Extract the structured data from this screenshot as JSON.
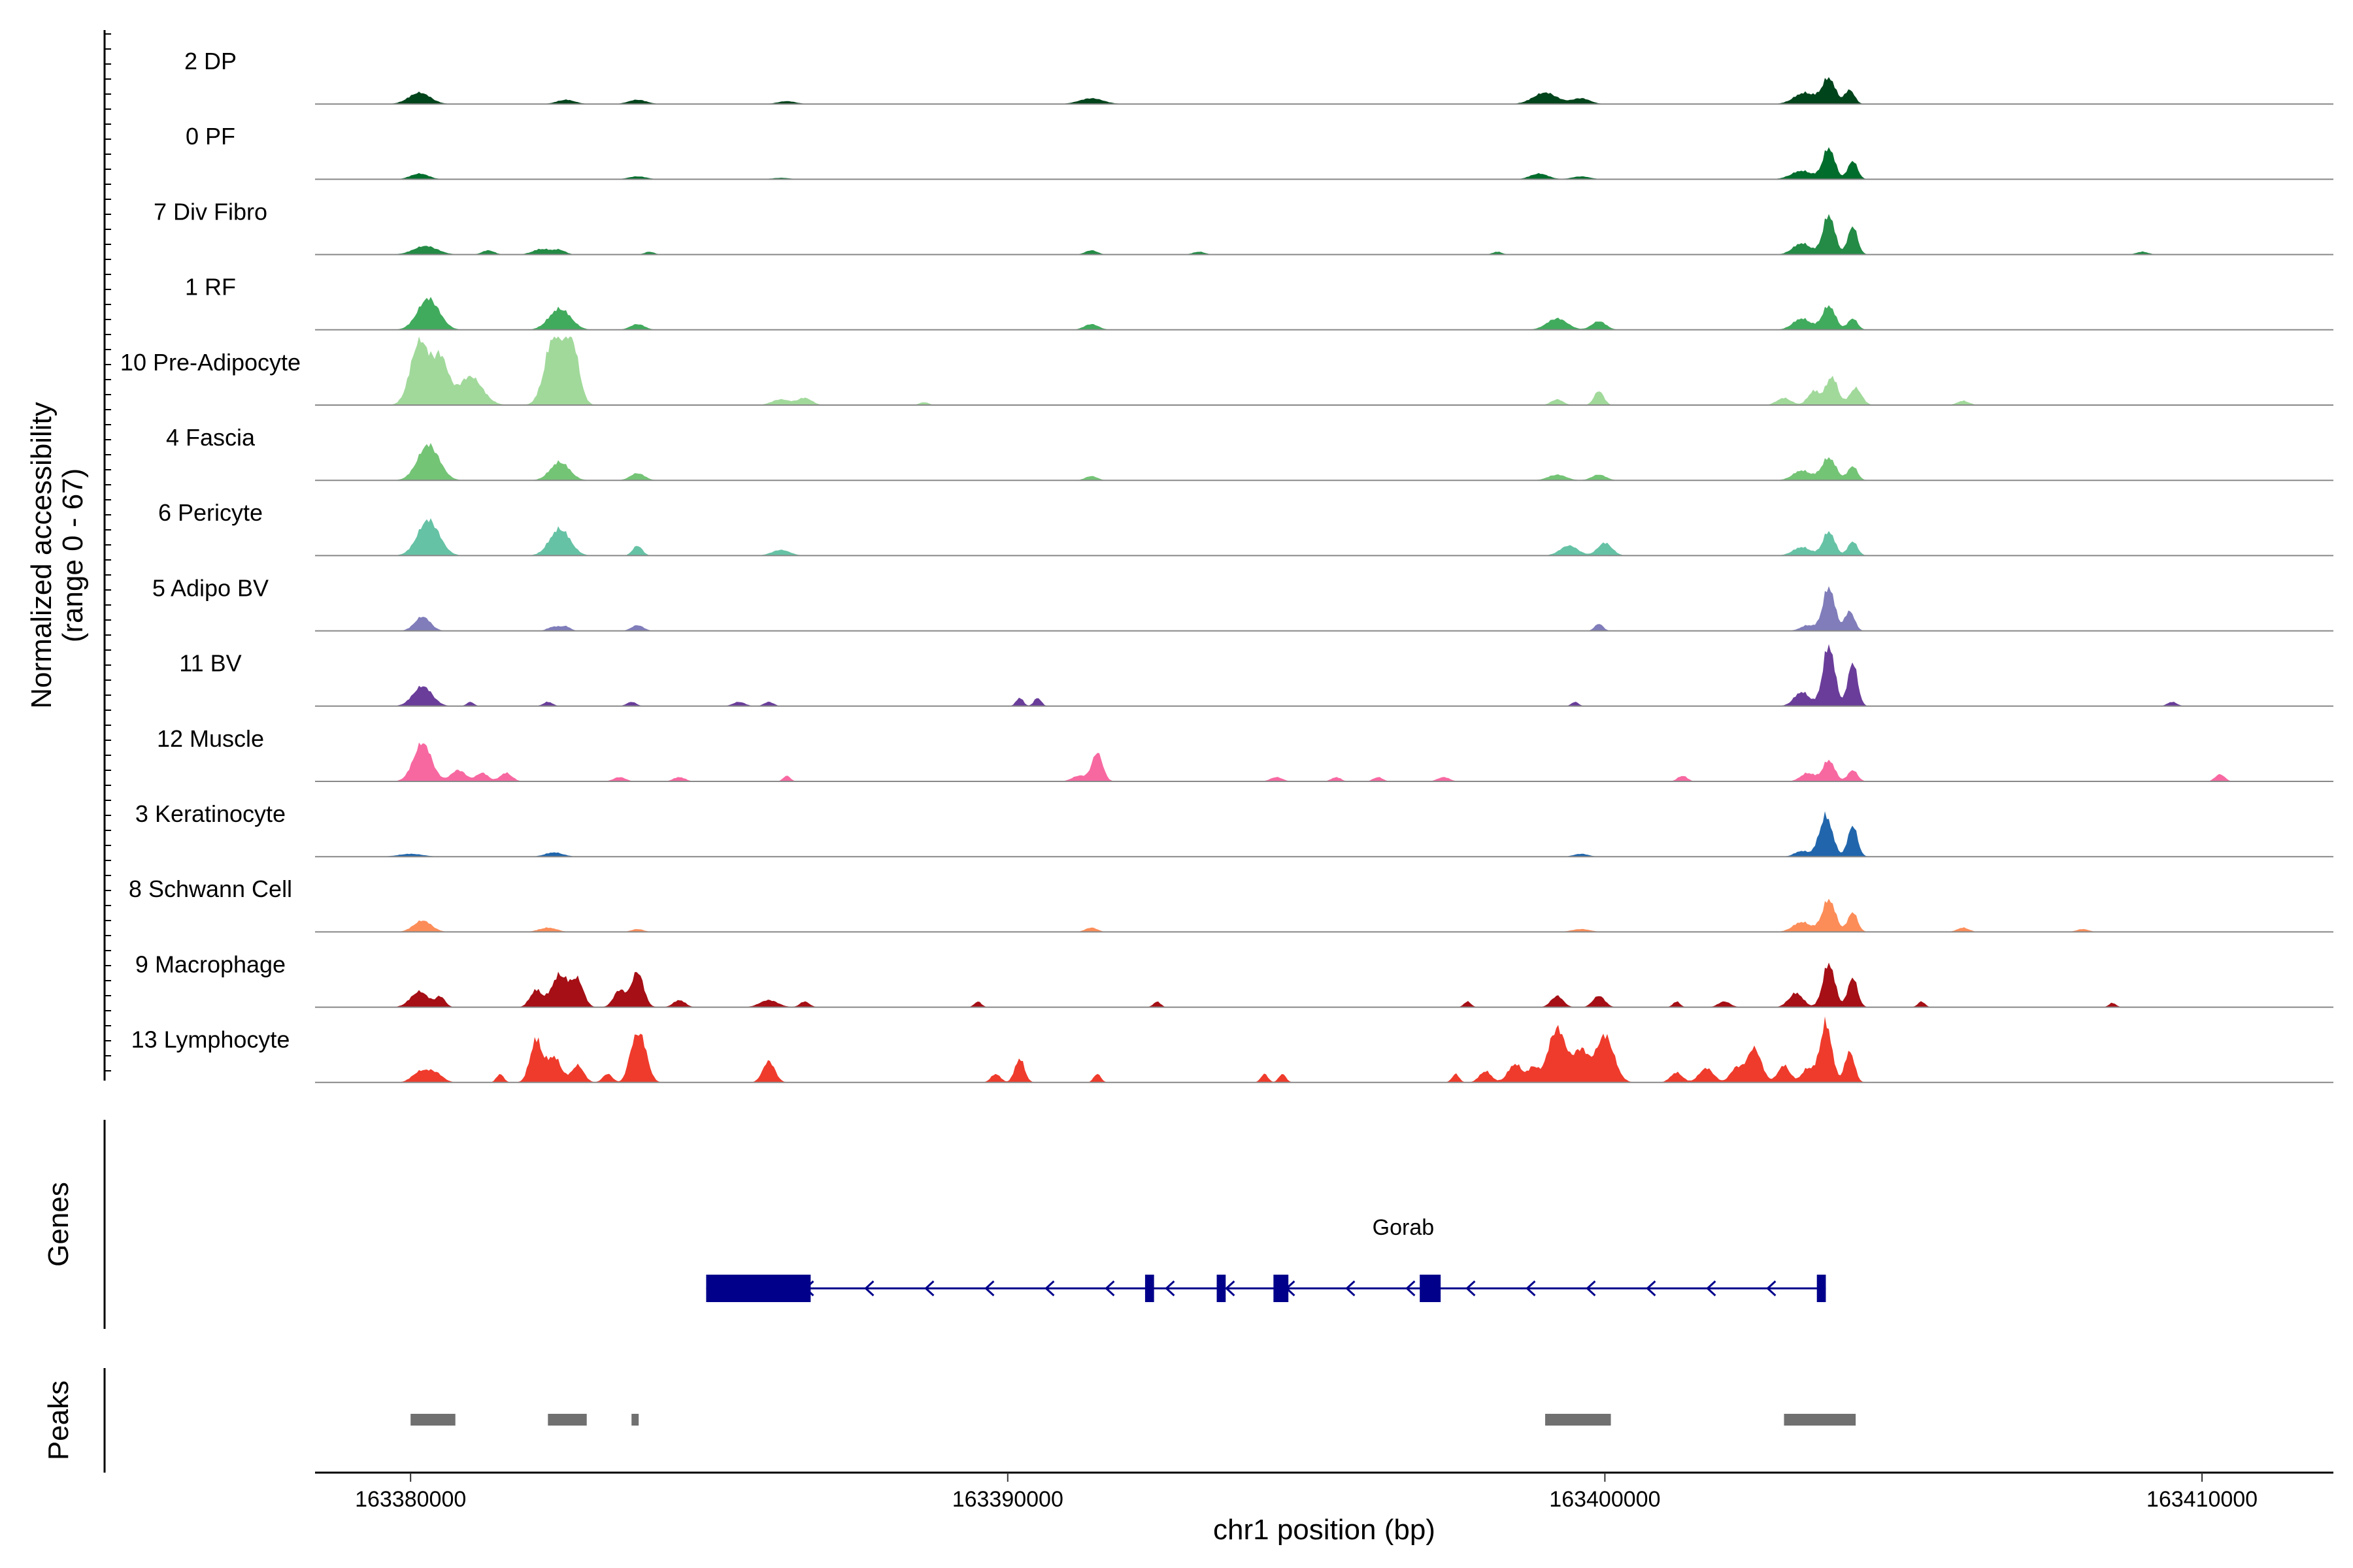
{
  "chart_data": {
    "type": "area",
    "title": "",
    "chromosome": "chr1",
    "xlabel": "chr1 position (bp)",
    "ylabel_line1": "Normalized accessibility",
    "ylabel_line2": "(range 0 - 67)",
    "y_range": [
      0,
      67
    ],
    "xlim": [
      163378400,
      163412200
    ],
    "x_ticks": [
      163380000,
      163390000,
      163400000,
      163410000
    ],
    "x_tick_labels": [
      "163380000",
      "163390000",
      "163400000",
      "163410000"
    ],
    "baseline_color": "#888888",
    "tracks": [
      {
        "name": "2 DP",
        "color": "#00441b",
        "peaks": [
          [
            163380150,
            8,
            180
          ],
          [
            163382600,
            3,
            150
          ],
          [
            163383800,
            3,
            150
          ],
          [
            163386300,
            2,
            150
          ],
          [
            163391400,
            4,
            200
          ],
          [
            163399000,
            8,
            200
          ],
          [
            163399600,
            4,
            150
          ],
          [
            163403350,
            8,
            180
          ],
          [
            163403750,
            18,
            110
          ],
          [
            163404100,
            10,
            80
          ]
        ]
      },
      {
        "name": "0 PF",
        "color": "#006d2c",
        "peaks": [
          [
            163380150,
            4,
            150
          ],
          [
            163383800,
            2,
            150
          ],
          [
            163386200,
            1,
            150
          ],
          [
            163398900,
            4,
            150
          ],
          [
            163399600,
            2,
            150
          ],
          [
            163403300,
            6,
            180
          ],
          [
            163403750,
            22,
            100
          ],
          [
            163404150,
            13,
            80
          ]
        ]
      },
      {
        "name": "7 Div Fibro",
        "color": "#238b45",
        "peaks": [
          [
            163380250,
            6,
            200
          ],
          [
            163381300,
            3,
            100
          ],
          [
            163382200,
            4,
            150
          ],
          [
            163382500,
            3,
            100
          ],
          [
            163384000,
            2,
            80
          ],
          [
            163391400,
            3,
            100
          ],
          [
            163393200,
            2,
            100
          ],
          [
            163398200,
            2,
            80
          ],
          [
            163403300,
            8,
            150
          ],
          [
            163403750,
            28,
            100
          ],
          [
            163404150,
            20,
            80
          ],
          [
            163409000,
            2,
            100
          ]
        ]
      },
      {
        "name": "1 RF",
        "color": "#41ab5d",
        "peaks": [
          [
            163380300,
            22,
            180
          ],
          [
            163382500,
            15,
            180
          ],
          [
            163383800,
            4,
            120
          ],
          [
            163391400,
            4,
            120
          ],
          [
            163399200,
            8,
            170
          ],
          [
            163399900,
            6,
            120
          ],
          [
            163403300,
            8,
            150
          ],
          [
            163403750,
            17,
            110
          ],
          [
            163404150,
            8,
            80
          ]
        ]
      },
      {
        "name": "10 Pre-Adipocyte",
        "color": "#a1d99b",
        "peaks": [
          [
            163380150,
            45,
            150
          ],
          [
            163380500,
            32,
            130
          ],
          [
            163381000,
            20,
            200
          ],
          [
            163382400,
            48,
            150
          ],
          [
            163382700,
            42,
            120
          ],
          [
            163386200,
            4,
            150
          ],
          [
            163386600,
            5,
            120
          ],
          [
            163388600,
            2,
            80
          ],
          [
            163399200,
            4,
            100
          ],
          [
            163399900,
            10,
            80
          ],
          [
            163403000,
            5,
            120
          ],
          [
            163403500,
            10,
            100
          ],
          [
            163403800,
            20,
            100
          ],
          [
            163404200,
            12,
            100
          ],
          [
            163406000,
            3,
            100
          ]
        ]
      },
      {
        "name": "4 Fascia",
        "color": "#74c476",
        "peaks": [
          [
            163380300,
            25,
            180
          ],
          [
            163382500,
            13,
            160
          ],
          [
            163383800,
            5,
            120
          ],
          [
            163391400,
            3,
            100
          ],
          [
            163399200,
            4,
            150
          ],
          [
            163399900,
            4,
            120
          ],
          [
            163403300,
            7,
            150
          ],
          [
            163403750,
            16,
            120
          ],
          [
            163404150,
            10,
            80
          ]
        ]
      },
      {
        "name": "6 Pericyte",
        "color": "#66c2a5",
        "peaks": [
          [
            163380300,
            25,
            180
          ],
          [
            163382500,
            19,
            170
          ],
          [
            163383800,
            7,
            80
          ],
          [
            163386200,
            4,
            150
          ],
          [
            163399400,
            7,
            150
          ],
          [
            163400000,
            9,
            120
          ],
          [
            163403300,
            6,
            150
          ],
          [
            163403750,
            17,
            100
          ],
          [
            163404150,
            10,
            80
          ]
        ]
      },
      {
        "name": "5 Adipo BV",
        "color": "#807dba",
        "peaks": [
          [
            163380200,
            10,
            130
          ],
          [
            163382400,
            3,
            100
          ],
          [
            163382600,
            3,
            80
          ],
          [
            163383800,
            4,
            100
          ],
          [
            163399900,
            5,
            70
          ],
          [
            163403400,
            4,
            120
          ],
          [
            163403750,
            31,
            100
          ],
          [
            163404100,
            14,
            80
          ]
        ]
      },
      {
        "name": "11 BV",
        "color": "#6a3d9a",
        "peaks": [
          [
            163380200,
            14,
            160
          ],
          [
            163381000,
            3,
            60
          ],
          [
            163382300,
            3,
            80
          ],
          [
            163383700,
            3,
            80
          ],
          [
            163385500,
            3,
            100
          ],
          [
            163386000,
            3,
            80
          ],
          [
            163390200,
            6,
            60
          ],
          [
            163390500,
            6,
            60
          ],
          [
            163399500,
            3,
            60
          ],
          [
            163403300,
            10,
            130
          ],
          [
            163403750,
            43,
            100
          ],
          [
            163404150,
            31,
            80
          ],
          [
            163409500,
            3,
            80
          ]
        ]
      },
      {
        "name": "12 Muscle",
        "color": "#f768a1",
        "peaks": [
          [
            163380200,
            27,
            150
          ],
          [
            163380800,
            8,
            120
          ],
          [
            163381200,
            6,
            100
          ],
          [
            163381600,
            6,
            100
          ],
          [
            163383500,
            3,
            100
          ],
          [
            163384500,
            3,
            100
          ],
          [
            163386300,
            4,
            60
          ],
          [
            163391200,
            4,
            120
          ],
          [
            163391500,
            20,
            90
          ],
          [
            163394500,
            3,
            100
          ],
          [
            163395500,
            3,
            80
          ],
          [
            163396200,
            3,
            80
          ],
          [
            163397300,
            3,
            100
          ],
          [
            163401300,
            4,
            80
          ],
          [
            163403400,
            6,
            120
          ],
          [
            163403750,
            15,
            100
          ],
          [
            163404150,
            8,
            80
          ],
          [
            163410300,
            5,
            80
          ]
        ]
      },
      {
        "name": "3 Keratinocyte",
        "color": "#2166ac",
        "peaks": [
          [
            163380000,
            2,
            200
          ],
          [
            163382400,
            3,
            150
          ],
          [
            163399600,
            2,
            120
          ],
          [
            163403300,
            4,
            120
          ],
          [
            163403700,
            29,
            110
          ],
          [
            163404150,
            22,
            80
          ]
        ]
      },
      {
        "name": "8 Schwann Cell",
        "color": "#fc8d59",
        "peaks": [
          [
            163380200,
            8,
            150
          ],
          [
            163382300,
            3,
            150
          ],
          [
            163383800,
            2,
            100
          ],
          [
            163391400,
            3,
            100
          ],
          [
            163399600,
            2,
            150
          ],
          [
            163403300,
            7,
            150
          ],
          [
            163403750,
            23,
            110
          ],
          [
            163404150,
            14,
            80
          ],
          [
            163406000,
            3,
            100
          ],
          [
            163408000,
            2,
            100
          ]
        ]
      },
      {
        "name": "9 Macrophage",
        "color": "#a50f15",
        "peaks": [
          [
            163380150,
            11,
            150
          ],
          [
            163380500,
            7,
            80
          ],
          [
            163382100,
            12,
            100
          ],
          [
            163382500,
            23,
            140
          ],
          [
            163382800,
            18,
            100
          ],
          [
            163383500,
            12,
            100
          ],
          [
            163383800,
            25,
            100
          ],
          [
            163384500,
            5,
            100
          ],
          [
            163386000,
            5,
            150
          ],
          [
            163386600,
            4,
            80
          ],
          [
            163389500,
            4,
            60
          ],
          [
            163392500,
            4,
            60
          ],
          [
            163397700,
            4,
            60
          ],
          [
            163399200,
            8,
            100
          ],
          [
            163399900,
            8,
            100
          ],
          [
            163401200,
            4,
            60
          ],
          [
            163402000,
            4,
            100
          ],
          [
            163403200,
            10,
            120
          ],
          [
            163403750,
            31,
            100
          ],
          [
            163404150,
            21,
            80
          ],
          [
            163405300,
            4,
            60
          ],
          [
            163408500,
            3,
            60
          ]
        ]
      },
      {
        "name": "13 Lymphocyte",
        "color": "#ef3b2c",
        "peaks": [
          [
            163380150,
            7,
            130
          ],
          [
            163380400,
            7,
            130
          ],
          [
            163381500,
            6,
            60
          ],
          [
            163382100,
            30,
            100
          ],
          [
            163382400,
            18,
            120
          ],
          [
            163382800,
            12,
            100
          ],
          [
            163383300,
            6,
            80
          ],
          [
            163383700,
            12,
            80
          ],
          [
            163383850,
            32,
            110
          ],
          [
            163386000,
            15,
            100
          ],
          [
            163389800,
            6,
            80
          ],
          [
            163390200,
            17,
            80
          ],
          [
            163391500,
            6,
            60
          ],
          [
            163394300,
            6,
            60
          ],
          [
            163394600,
            6,
            60
          ],
          [
            163397500,
            6,
            60
          ],
          [
            163398000,
            8,
            100
          ],
          [
            163398500,
            13,
            120
          ],
          [
            163398800,
            10,
            80
          ],
          [
            163399200,
            38,
            150
          ],
          [
            163399600,
            22,
            120
          ],
          [
            163400000,
            33,
            150
          ],
          [
            163401200,
            7,
            100
          ],
          [
            163401700,
            10,
            120
          ],
          [
            163402200,
            10,
            100
          ],
          [
            163402500,
            24,
            120
          ],
          [
            163403000,
            12,
            100
          ],
          [
            163403400,
            10,
            100
          ],
          [
            163403700,
            42,
            100
          ],
          [
            163404100,
            22,
            80
          ]
        ]
      }
    ],
    "gene": {
      "name": "Gorab",
      "strand": "-",
      "color": "#00008b",
      "start": 163384950,
      "end": 163403700,
      "exons": [
        [
          163384950,
          163386700,
          "utr"
        ],
        [
          163392300,
          163392450,
          "cds"
        ],
        [
          163393500,
          163393650,
          "cds"
        ],
        [
          163394450,
          163394700,
          "cds"
        ],
        [
          163396900,
          163397250,
          "cds"
        ],
        [
          163403550,
          163403700,
          "cds"
        ]
      ]
    },
    "peak_regions": {
      "color": "#707070",
      "regions": [
        [
          163380000,
          163380750
        ],
        [
          163382300,
          163382950
        ],
        [
          163383700,
          163383820
        ],
        [
          163399000,
          163400100
        ],
        [
          163403000,
          163404200
        ]
      ]
    },
    "panels": {
      "genes_label": "Genes",
      "peaks_label": "Peaks"
    }
  }
}
